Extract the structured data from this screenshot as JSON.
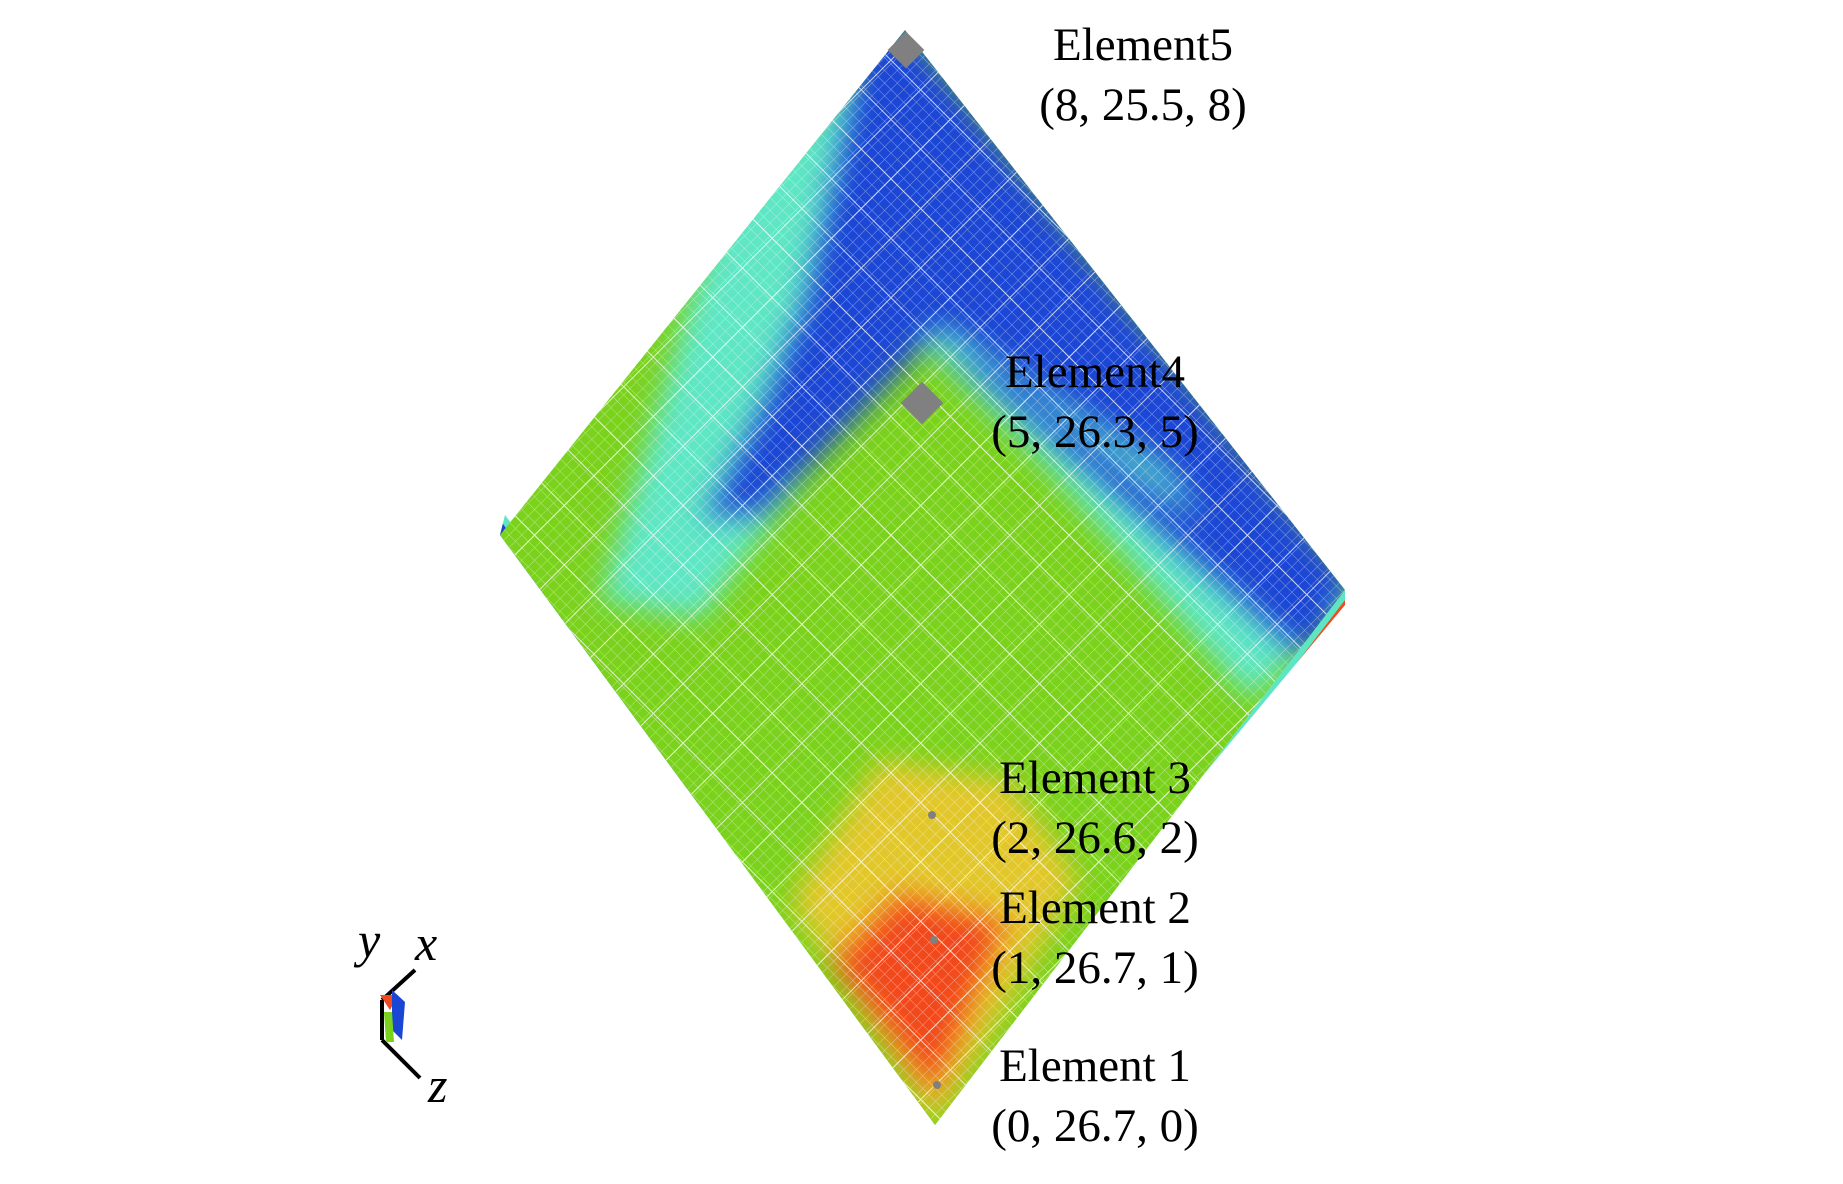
{
  "figure": {
    "elements": [
      {
        "name": "Element5",
        "coords": "(8, 25.5, 8)"
      },
      {
        "name": "Element4",
        "coords": "(5, 26.3, 5)"
      },
      {
        "name": "Element 3",
        "coords": "(2, 26.6, 2)"
      },
      {
        "name": "Element 2",
        "coords": "(1, 26.7, 1)"
      },
      {
        "name": "Element 1",
        "coords": "(0, 26.7, 0)"
      }
    ],
    "axes": {
      "x": "x",
      "y": "y",
      "z": "z"
    },
    "colors": {
      "red": "#f24a1f",
      "yellow": "#e2c72a",
      "green": "#7bd21c",
      "cyan": "#5ee6c4",
      "blue": "#1a46d4",
      "marker": "#808080"
    }
  }
}
